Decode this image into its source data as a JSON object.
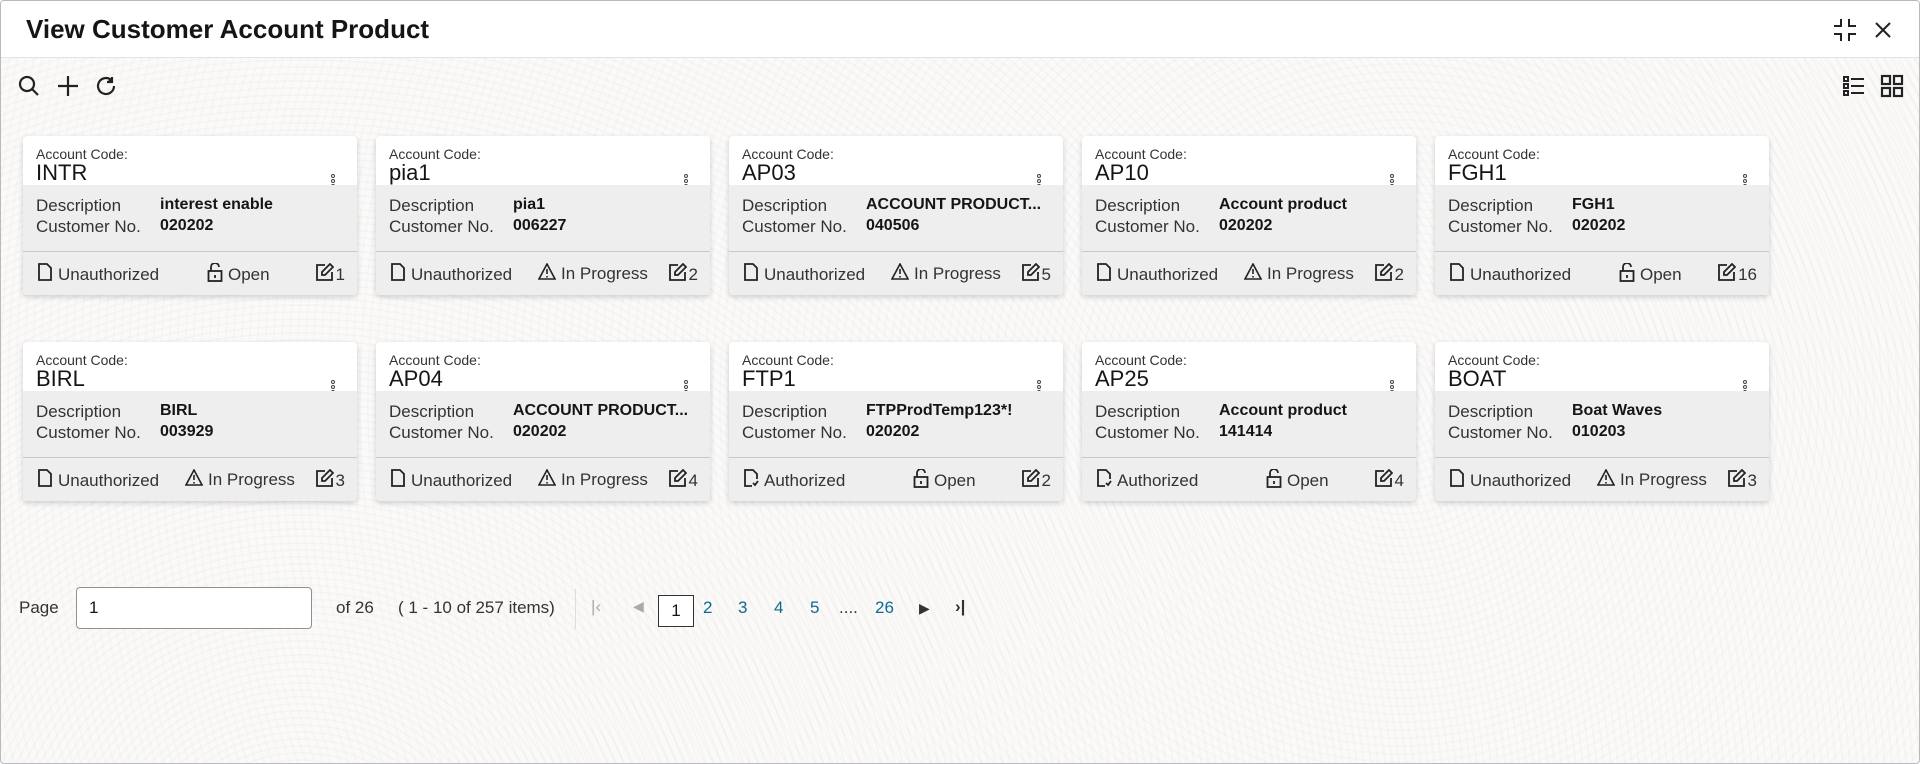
{
  "header": {
    "title": "View Customer Account Product"
  },
  "labels": {
    "account_code": "Account Code:",
    "description": "Description",
    "customer_no": "Customer No."
  },
  "cards": [
    {
      "code": "INTR",
      "description": "interest enable",
      "customer_no": "020202",
      "auth": "Unauthorized",
      "status": "Open",
      "edits": "1"
    },
    {
      "code": "pia1",
      "description": "pia1",
      "customer_no": "006227",
      "auth": "Unauthorized",
      "status": "In Progress",
      "edits": "2"
    },
    {
      "code": "AP03",
      "description": "ACCOUNT PRODUCT...",
      "customer_no": "040506",
      "auth": "Unauthorized",
      "status": "In Progress",
      "edits": "5"
    },
    {
      "code": "AP10",
      "description": "Account product",
      "customer_no": "020202",
      "auth": "Unauthorized",
      "status": "In Progress",
      "edits": "2"
    },
    {
      "code": "FGH1",
      "description": "FGH1",
      "customer_no": "020202",
      "auth": "Unauthorized",
      "status": "Open",
      "edits": "16"
    },
    {
      "code": "BIRL",
      "description": "BIRL",
      "customer_no": "003929",
      "auth": "Unauthorized",
      "status": "In Progress",
      "edits": "3"
    },
    {
      "code": "AP04",
      "description": "ACCOUNT PRODUCT...",
      "customer_no": "020202",
      "auth": "Unauthorized",
      "status": "In Progress",
      "edits": "4"
    },
    {
      "code": "FTP1",
      "description": "FTPProdTemp123*!",
      "customer_no": "020202",
      "auth": "Authorized",
      "status": "Open",
      "edits": "2"
    },
    {
      "code": "AP25",
      "description": "Account product",
      "customer_no": "141414",
      "auth": "Authorized",
      "status": "Open",
      "edits": "4"
    },
    {
      "code": "BOAT",
      "description": "Boat Waves",
      "customer_no": "010203",
      "auth": "Unauthorized",
      "status": "In Progress",
      "edits": "3"
    }
  ],
  "pagination": {
    "label": "Page",
    "value": "1",
    "of": "of 26",
    "range": "( 1 - 10 of 257 items)",
    "pages": [
      "1",
      "2",
      "3",
      "4",
      "5",
      "....",
      "26"
    ]
  },
  "colors": {
    "link": "#0f6a8f",
    "card_body": "#eeeeee"
  }
}
